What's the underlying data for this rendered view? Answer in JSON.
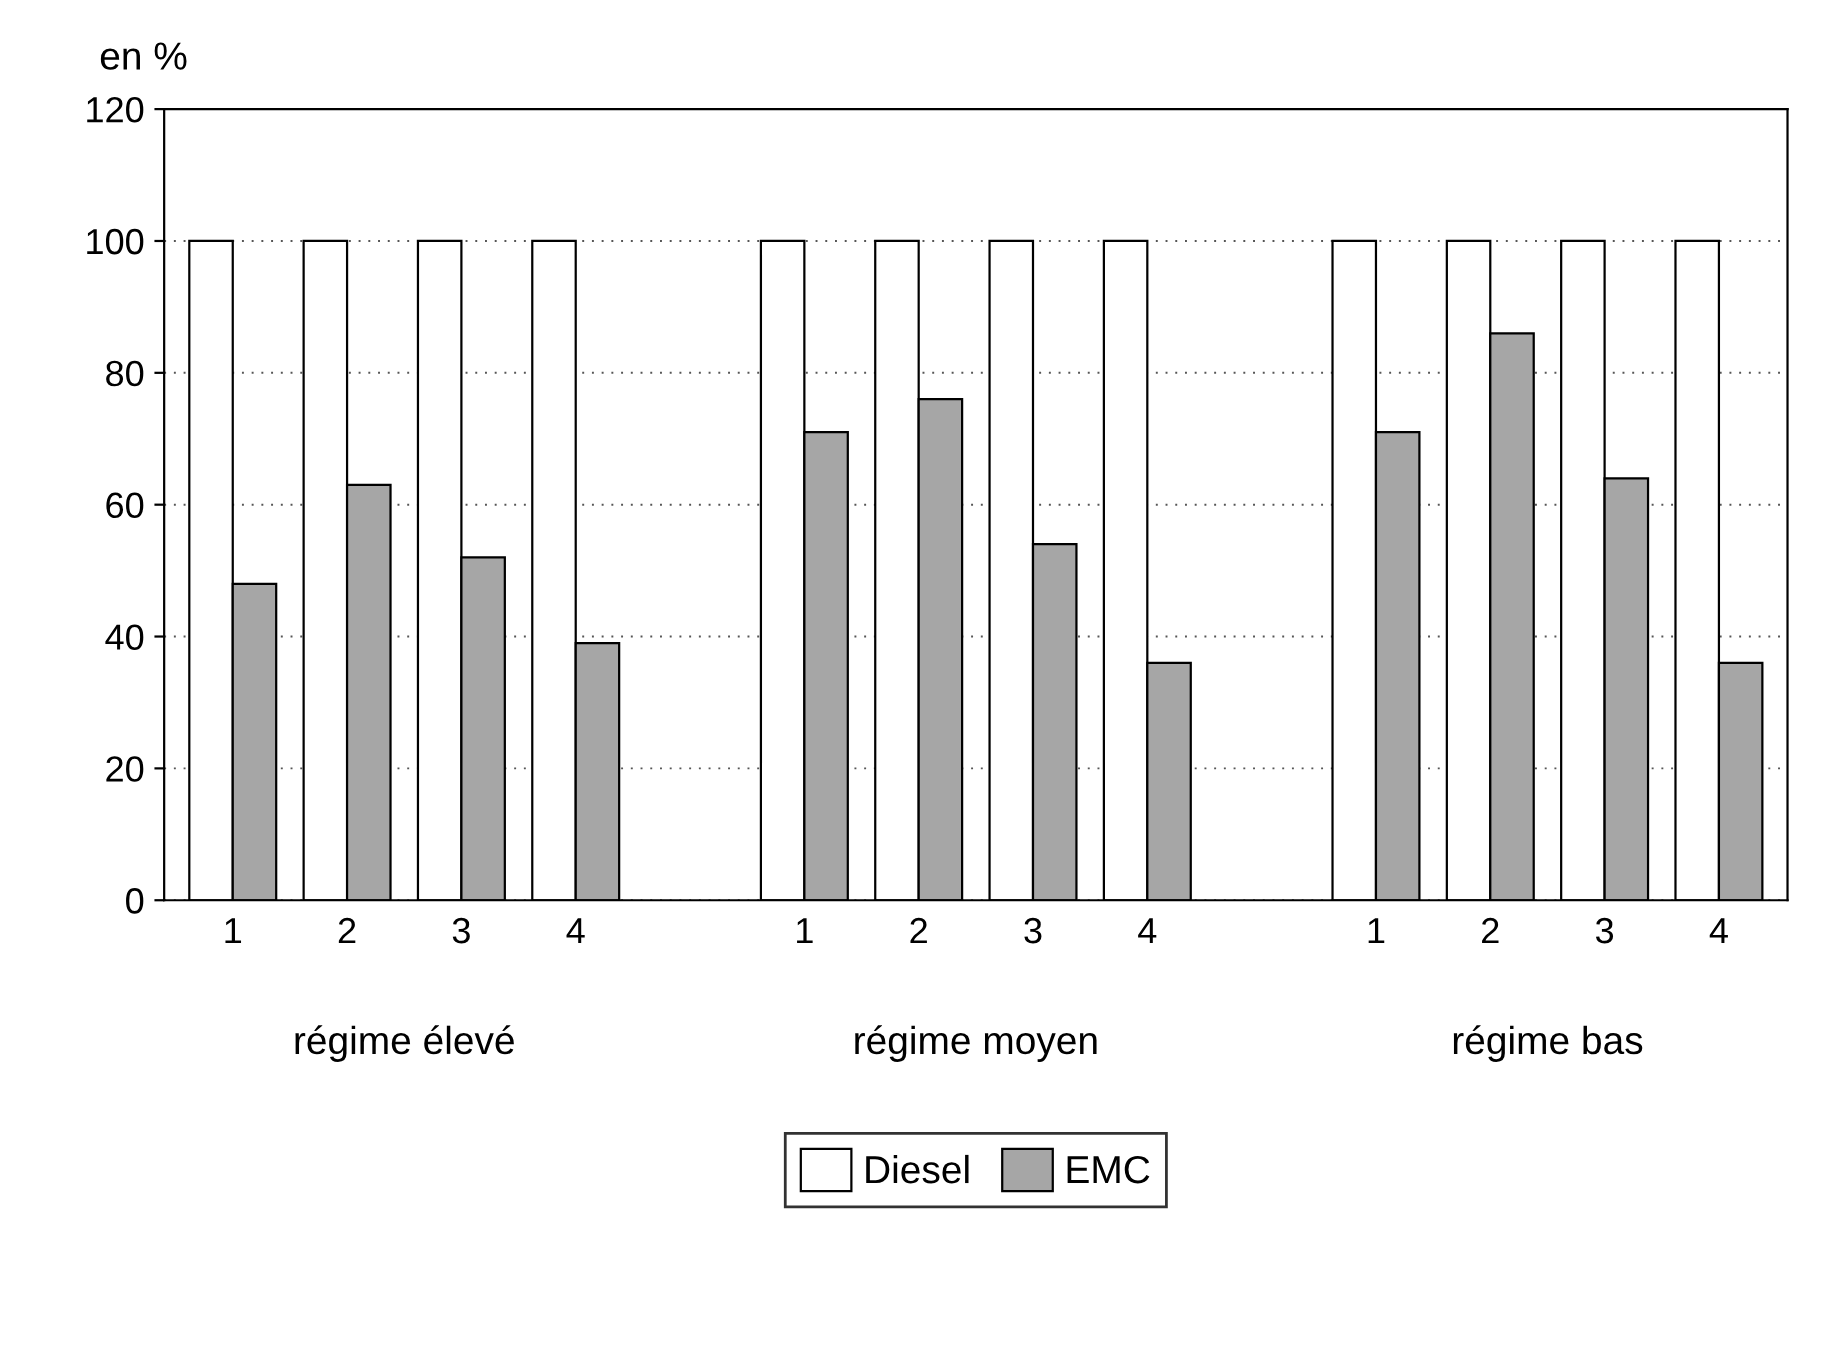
{
  "chart_data": {
    "type": "bar",
    "ylabel": "en %",
    "categories": [
      "1",
      "2",
      "3",
      "4",
      null,
      "1",
      "2",
      "3",
      "4",
      null,
      "1",
      "2",
      "3",
      "4"
    ],
    "series": [
      {
        "name": "Diesel",
        "color": "#ffffff",
        "values": [
          100,
          100,
          100,
          100,
          null,
          100,
          100,
          100,
          100,
          null,
          100,
          100,
          100,
          100
        ]
      },
      {
        "name": "EMC",
        "color": "#a6a6a6",
        "values": [
          48,
          63,
          52,
          39,
          null,
          71,
          76,
          54,
          36,
          null,
          71,
          86,
          64,
          36
        ]
      }
    ],
    "annotations": [
      "régime élevé",
      "régime moyen",
      "régime bas"
    ],
    "ylim": [
      0,
      120
    ],
    "yticks": [
      0,
      20,
      40,
      60,
      80,
      100,
      120
    ],
    "grid": "y",
    "legend": "bottom"
  }
}
